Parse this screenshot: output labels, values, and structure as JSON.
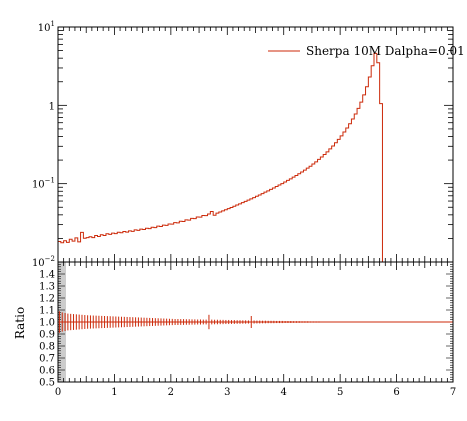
{
  "chart_data": [
    {
      "type": "line",
      "panel": "main",
      "yscale": "log",
      "xlim": [
        0,
        7
      ],
      "ylim": [
        0.01,
        10
      ],
      "ytick_labels": [
        {
          "value": 10,
          "base": "10",
          "exp": "1"
        },
        {
          "value": 1,
          "base": "1",
          "exp": ""
        },
        {
          "value": 0.1,
          "base": "10",
          "exp": "−1"
        },
        {
          "value": 0.01,
          "base": "10",
          "exp": "−2"
        }
      ],
      "legend": [
        "Sherpa 10M Dalpha=0.01"
      ],
      "legend_position": "top-right",
      "series": [
        {
          "name": "Sherpa 10M Dalpha=0.01",
          "color": "#cc2a0a",
          "bin_width": 0.05,
          "x_start": 0.0,
          "values": [
            0.0183,
            0.0176,
            0.0187,
            0.0178,
            0.0195,
            0.0185,
            0.0203,
            0.0181,
            0.0239,
            0.0201,
            0.0205,
            0.021,
            0.0205,
            0.0218,
            0.0212,
            0.0223,
            0.0218,
            0.0229,
            0.0225,
            0.0234,
            0.023,
            0.024,
            0.0236,
            0.0245,
            0.0241,
            0.025,
            0.0246,
            0.0257,
            0.0253,
            0.0263,
            0.026,
            0.027,
            0.0267,
            0.0278,
            0.0275,
            0.0287,
            0.0284,
            0.0296,
            0.0293,
            0.0306,
            0.0304,
            0.0318,
            0.0316,
            0.0331,
            0.0329,
            0.0345,
            0.0343,
            0.036,
            0.0358,
            0.0376,
            0.0374,
            0.0393,
            0.0391,
            0.041,
            0.0442,
            0.0395,
            0.042,
            0.0435,
            0.045,
            0.0465,
            0.048,
            0.0497,
            0.0515,
            0.0534,
            0.0553,
            0.0573,
            0.0594,
            0.0616,
            0.064,
            0.0664,
            0.069,
            0.0718,
            0.0745,
            0.078,
            0.081,
            0.0845,
            0.088,
            0.092,
            0.096,
            0.1,
            0.105,
            0.11,
            0.115,
            0.121,
            0.127,
            0.134,
            0.141,
            0.149,
            0.158,
            0.167,
            0.178,
            0.19,
            0.204,
            0.219,
            0.236,
            0.255,
            0.278,
            0.303,
            0.333,
            0.368,
            0.408,
            0.456,
            0.513,
            0.582,
            0.668,
            0.776,
            0.915,
            1.1,
            1.36,
            1.73,
            2.3,
            3.2,
            4.6,
            3.5,
            1.05,
            0.004
          ]
        }
      ]
    },
    {
      "type": "line",
      "panel": "ratio",
      "xlim": [
        0,
        7
      ],
      "ylim": [
        0.5,
        1.5
      ],
      "ylabel": "Ratio",
      "xtick_labels": [
        "0",
        "1",
        "2",
        "3",
        "4",
        "5",
        "6",
        "7"
      ],
      "ytick_labels": [
        "0.5",
        "0.6",
        "0.7",
        "0.8",
        "0.9",
        "1.0",
        "1.1",
        "1.2",
        "1.3",
        "1.4"
      ],
      "band_color": "#cccccc",
      "series": [
        {
          "name": "Sherpa 10M Dalpha=0.01",
          "color": "#cc2a0a",
          "ratio_value": 1.0,
          "error_x": [
            0.025,
            0.075,
            0.125,
            0.175,
            0.225,
            0.275,
            0.325,
            0.375,
            0.425,
            0.475,
            0.525,
            0.575,
            0.625,
            0.675,
            0.725,
            0.775,
            0.825,
            0.875,
            0.925,
            0.975,
            1.025,
            1.075,
            1.125,
            1.175,
            1.225,
            1.275,
            1.325,
            1.375,
            1.425,
            1.475,
            1.525,
            1.575,
            1.625,
            1.675,
            1.725,
            1.775,
            1.825,
            1.875,
            1.925,
            1.975,
            2.025,
            2.075,
            2.125,
            2.175,
            2.225,
            2.275,
            2.325,
            2.375,
            2.425,
            2.475,
            2.525,
            2.575,
            2.625,
            2.675,
            2.725,
            2.775,
            2.825,
            2.875,
            2.925,
            2.975,
            3.025,
            3.075,
            3.125,
            3.175,
            3.225,
            3.275,
            3.325,
            3.375,
            3.425,
            3.475,
            3.525,
            3.575,
            3.625,
            3.675,
            3.725,
            3.775,
            3.825,
            3.875,
            3.925,
            3.975,
            4.025,
            4.075,
            4.125,
            4.175,
            4.225,
            4.275,
            4.325,
            4.375,
            4.425,
            4.475,
            4.525,
            4.575,
            4.625,
            4.675,
            4.725,
            4.775
          ],
          "error_half": [
            0.09,
            0.08,
            0.075,
            0.07,
            0.068,
            0.066,
            0.064,
            0.062,
            0.06,
            0.058,
            0.056,
            0.055,
            0.054,
            0.053,
            0.052,
            0.051,
            0.05,
            0.049,
            0.048,
            0.047,
            0.046,
            0.045,
            0.044,
            0.043,
            0.042,
            0.041,
            0.04,
            0.039,
            0.038,
            0.037,
            0.036,
            0.035,
            0.034,
            0.033,
            0.032,
            0.031,
            0.03,
            0.029,
            0.028,
            0.027,
            0.026,
            0.025,
            0.025,
            0.024,
            0.024,
            0.023,
            0.023,
            0.022,
            0.022,
            0.021,
            0.021,
            0.02,
            0.02,
            0.06,
            0.02,
            0.019,
            0.019,
            0.018,
            0.018,
            0.017,
            0.017,
            0.016,
            0.016,
            0.015,
            0.015,
            0.014,
            0.014,
            0.013,
            0.05,
            0.013,
            0.012,
            0.012,
            0.011,
            0.011,
            0.01,
            0.01,
            0.01,
            0.009,
            0.009,
            0.009,
            0.008,
            0.008,
            0.008,
            0.007,
            0.007,
            0.007,
            0.006,
            0.006,
            0.006,
            0.005,
            0.005,
            0.005,
            0.005,
            0.004,
            0.004,
            0.004
          ]
        }
      ]
    }
  ]
}
